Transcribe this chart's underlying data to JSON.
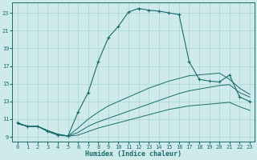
{
  "xlabel": "Humidex (Indice chaleur)",
  "bg_color": "#ceeaeb",
  "grid_color": "#a8d4d6",
  "line_color": "#1a6b6b",
  "xlim": [
    -0.5,
    23.5
  ],
  "ylim": [
    8.5,
    24.2
  ],
  "xticks": [
    0,
    1,
    2,
    3,
    4,
    5,
    6,
    7,
    8,
    9,
    10,
    11,
    12,
    13,
    14,
    15,
    16,
    17,
    18,
    19,
    20,
    21,
    22,
    23
  ],
  "yticks": [
    9,
    11,
    13,
    15,
    17,
    19,
    21,
    23
  ],
  "curve_main_x": [
    0,
    1,
    2,
    3,
    4,
    5,
    6,
    7,
    8,
    9,
    10,
    11,
    12,
    13,
    14,
    15,
    16,
    17,
    18,
    19,
    20,
    21,
    22,
    23
  ],
  "curve_main_y": [
    10.6,
    10.2,
    10.2,
    9.6,
    9.2,
    9.1,
    11.8,
    14.0,
    17.5,
    20.2,
    21.5,
    23.1,
    23.5,
    23.3,
    23.2,
    23.0,
    22.8,
    17.5,
    15.5,
    15.3,
    15.2,
    16.0,
    13.5,
    13.0
  ],
  "curve_low_x": [
    0,
    1,
    2,
    3,
    4,
    5,
    6,
    7,
    8,
    9,
    10,
    11,
    12,
    13,
    14,
    15,
    16,
    17,
    18,
    19,
    20,
    21,
    22,
    23
  ],
  "curve_low_y": [
    10.5,
    10.2,
    10.2,
    9.7,
    9.3,
    9.1,
    9.2,
    9.6,
    10.0,
    10.3,
    10.6,
    10.9,
    11.2,
    11.5,
    11.8,
    12.1,
    12.3,
    12.5,
    12.6,
    12.7,
    12.8,
    12.9,
    12.4,
    12.0
  ],
  "curve_mid_x": [
    0,
    1,
    2,
    3,
    4,
    5,
    6,
    7,
    8,
    9,
    10,
    11,
    12,
    13,
    14,
    15,
    16,
    17,
    18,
    19,
    20,
    21,
    22,
    23
  ],
  "curve_mid_y": [
    10.5,
    10.2,
    10.2,
    9.7,
    9.3,
    9.1,
    9.5,
    10.2,
    10.7,
    11.1,
    11.5,
    11.9,
    12.3,
    12.7,
    13.1,
    13.5,
    13.9,
    14.2,
    14.4,
    14.6,
    14.8,
    14.9,
    14.0,
    13.5
  ],
  "curve_hi_x": [
    0,
    1,
    2,
    3,
    4,
    5,
    6,
    7,
    8,
    9,
    10,
    11,
    12,
    13,
    14,
    15,
    16,
    17,
    18,
    19,
    20,
    21,
    22,
    23
  ],
  "curve_hi_y": [
    10.5,
    10.2,
    10.2,
    9.7,
    9.3,
    9.1,
    10.0,
    11.0,
    11.8,
    12.5,
    13.0,
    13.5,
    14.0,
    14.5,
    14.9,
    15.3,
    15.6,
    15.9,
    16.0,
    16.1,
    16.2,
    15.5,
    14.5,
    13.8
  ]
}
